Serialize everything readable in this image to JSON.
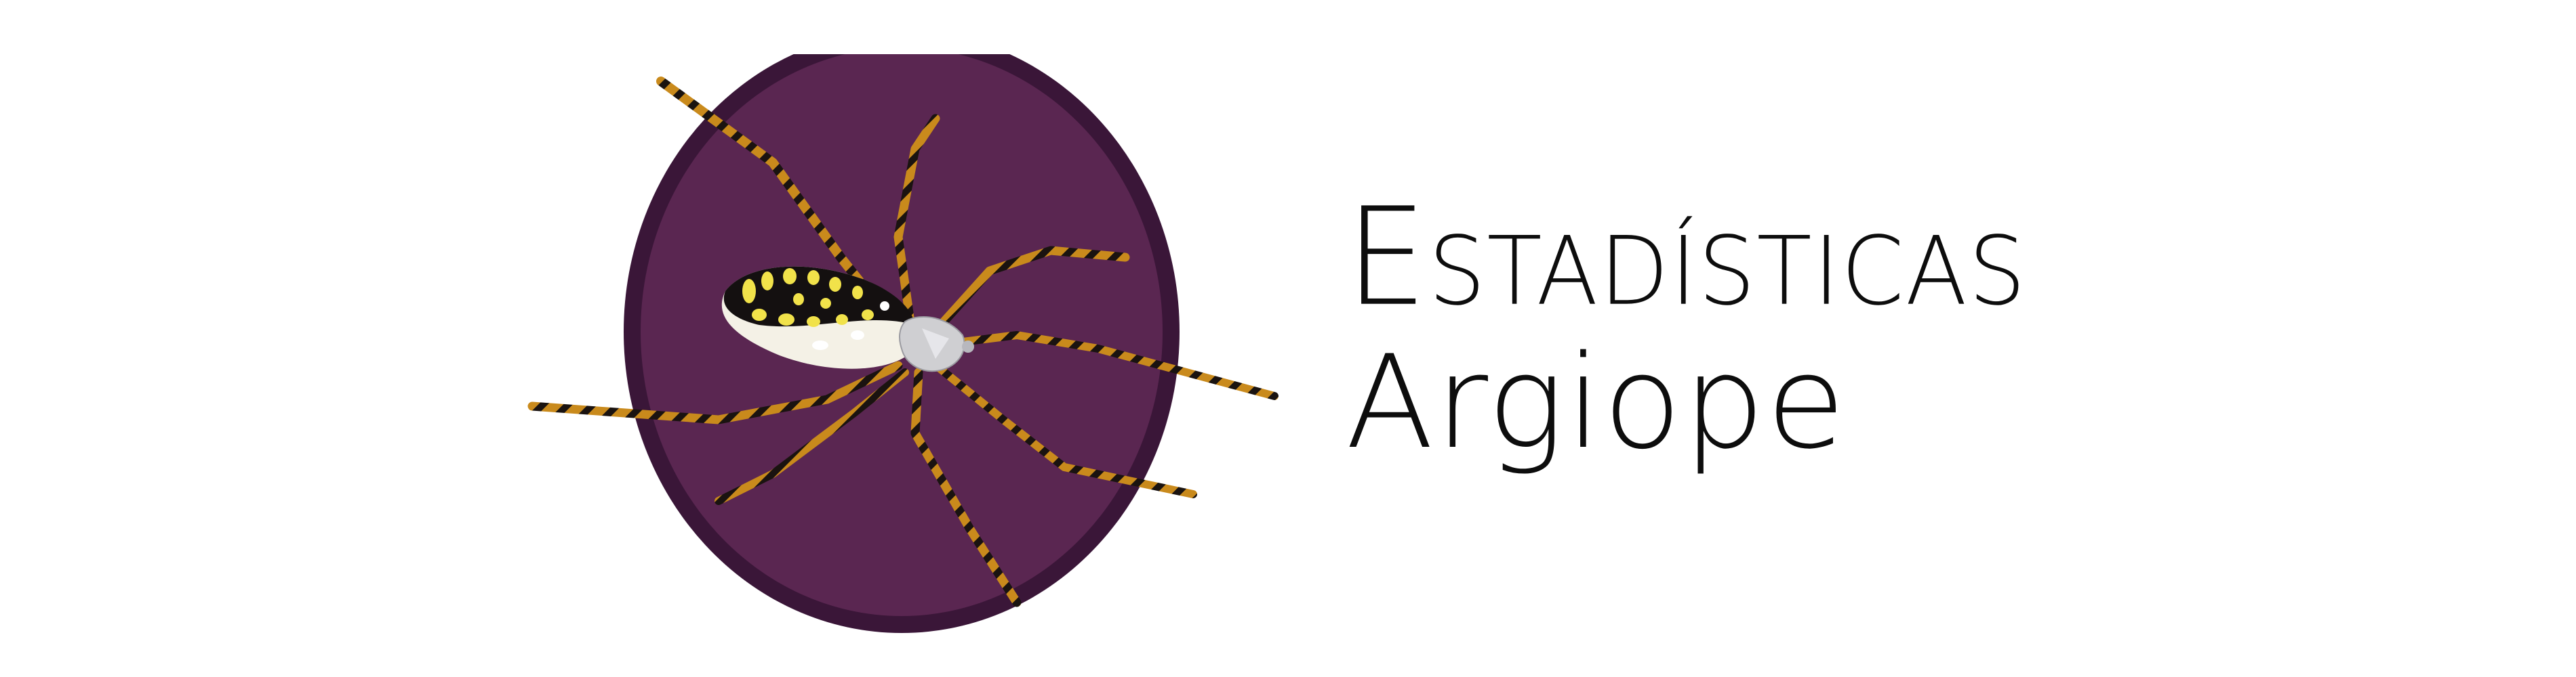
{
  "brand": {
    "title_line1": "Estadísticas",
    "title_line2": "Argiope",
    "circle_outer_color": "#3a1638",
    "circle_inner_color": "#5a2651",
    "leg_gold": "#c98a1c",
    "leg_dark": "#1a1310",
    "abdomen_yellow": "#f1e24a",
    "abdomen_white": "#f4f1e6",
    "cephalothorax_silver": "#cfcfd2",
    "logo_icon": "spider-icon"
  }
}
